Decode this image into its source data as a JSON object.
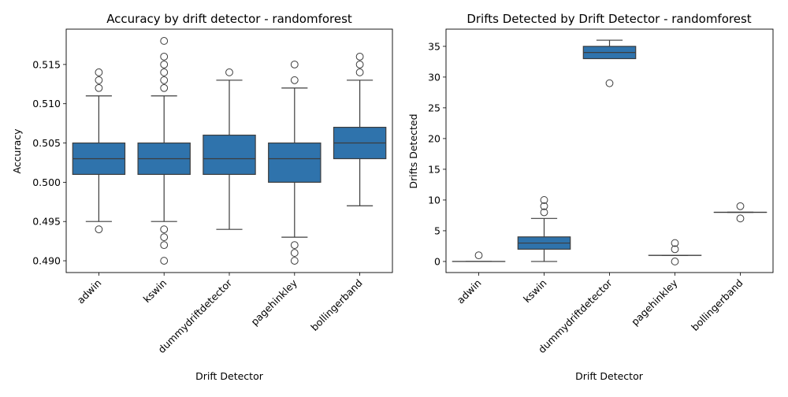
{
  "chart_data": [
    {
      "type": "box",
      "title": "Accuracy by drift detector - randomforest",
      "xlabel": "Drift Detector",
      "ylabel": "Accuracy",
      "categories": [
        "adwin",
        "kswin",
        "dummydriftdetector",
        "pagehinkley",
        "bollingerband"
      ],
      "ylim": [
        0.4885,
        0.5195
      ],
      "yticks": [
        0.49,
        0.495,
        0.5,
        0.505,
        0.51,
        0.515
      ],
      "ytick_labels": [
        "0.490",
        "0.495",
        "0.500",
        "0.505",
        "0.510",
        "0.515"
      ],
      "color": "#2f73ac",
      "boxes": [
        {
          "name": "adwin",
          "whisker_low": 0.495,
          "q1": 0.501,
          "median": 0.503,
          "q3": 0.505,
          "whisker_high": 0.511,
          "outliers": [
            0.494,
            0.512,
            0.513,
            0.514
          ]
        },
        {
          "name": "kswin",
          "whisker_low": 0.495,
          "q1": 0.501,
          "median": 0.503,
          "q3": 0.505,
          "whisker_high": 0.511,
          "outliers": [
            0.49,
            0.492,
            0.493,
            0.494,
            0.512,
            0.513,
            0.514,
            0.515,
            0.516,
            0.518
          ]
        },
        {
          "name": "dummydriftdetector",
          "whisker_low": 0.494,
          "q1": 0.501,
          "median": 0.503,
          "q3": 0.506,
          "whisker_high": 0.513,
          "outliers": [
            0.514
          ]
        },
        {
          "name": "pagehinkley",
          "whisker_low": 0.493,
          "q1": 0.5,
          "median": 0.503,
          "q3": 0.505,
          "whisker_high": 0.512,
          "outliers": [
            0.49,
            0.491,
            0.492,
            0.513,
            0.515
          ]
        },
        {
          "name": "bollingerband",
          "whisker_low": 0.497,
          "q1": 0.503,
          "median": 0.505,
          "q3": 0.507,
          "whisker_high": 0.513,
          "outliers": [
            0.514,
            0.515,
            0.516
          ]
        }
      ]
    },
    {
      "type": "box",
      "title": "Drifts Detected by Drift Detector - randomforest",
      "xlabel": "Drift Detector",
      "ylabel": "Drifts Detected",
      "categories": [
        "adwin",
        "kswin",
        "dummydriftdetector",
        "pagehinkley",
        "bollingerband"
      ],
      "ylim": [
        -1.8,
        37.8
      ],
      "yticks": [
        0,
        5,
        10,
        15,
        20,
        25,
        30,
        35
      ],
      "ytick_labels": [
        "0",
        "5",
        "10",
        "15",
        "20",
        "25",
        "30",
        "35"
      ],
      "color": "#2f73ac",
      "boxes": [
        {
          "name": "adwin",
          "whisker_low": 0,
          "q1": 0,
          "median": 0,
          "q3": 0,
          "whisker_high": 0,
          "outliers": [
            1
          ]
        },
        {
          "name": "kswin",
          "whisker_low": 0,
          "q1": 2,
          "median": 3,
          "q3": 4,
          "whisker_high": 7,
          "outliers": [
            8,
            9,
            10
          ]
        },
        {
          "name": "dummydriftdetector",
          "whisker_low": 33,
          "q1": 33,
          "median": 34,
          "q3": 35,
          "whisker_high": 36,
          "outliers": [
            29
          ]
        },
        {
          "name": "pagehinkley",
          "whisker_low": 1,
          "q1": 1,
          "median": 1,
          "q3": 1,
          "whisker_high": 1,
          "outliers": [
            0,
            2,
            3
          ]
        },
        {
          "name": "bollingerband",
          "whisker_low": 8,
          "q1": 8,
          "median": 8,
          "q3": 8,
          "whisker_high": 8,
          "outliers": [
            7,
            9
          ]
        }
      ]
    }
  ]
}
